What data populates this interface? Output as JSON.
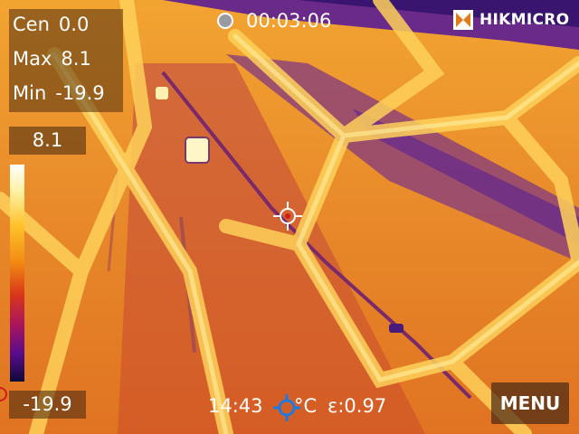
{
  "stats": {
    "center_label": "Cen",
    "center_value": "0.0",
    "max_label": "Max",
    "max_value": "8.1",
    "min_label": "Min",
    "min_value": "-19.9"
  },
  "palette": {
    "high": "8.1",
    "low": "-19.9"
  },
  "recording": {
    "time": "00:03:06"
  },
  "brand": {
    "name": "HIKMICRO"
  },
  "status": {
    "clock": "14:43",
    "unit": "°C",
    "emissivity": "ε:0.97"
  },
  "menu": {
    "label": "MENU"
  },
  "icons": [
    "record-indicator-icon",
    "hikmicro-logo-icon",
    "center-crosshair-icon",
    "temperature-target-icon"
  ],
  "colors": {
    "palette_top": "#ffffff",
    "palette_bottom": "#0c0a3a",
    "hot": "#ffb32b",
    "cold": "#5a1a8c",
    "unit_icon": "#1e7ae0"
  }
}
